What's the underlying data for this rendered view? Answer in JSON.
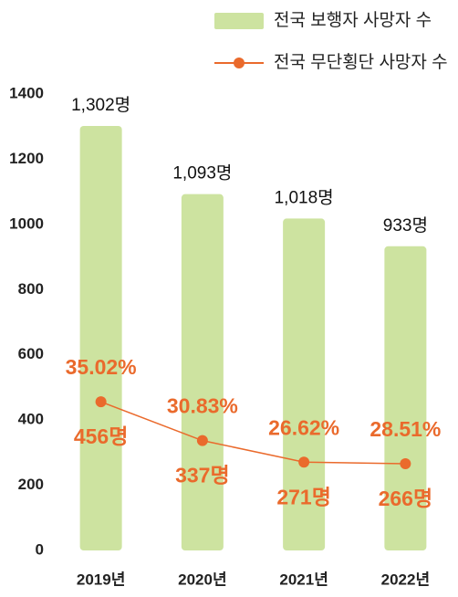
{
  "chart_data": {
    "type": "bar",
    "categories": [
      "2019년",
      "2020년",
      "2021년",
      "2022년"
    ],
    "series": [
      {
        "name": "전국 보행자 사망자 수",
        "type": "bar",
        "color": "#cde3a0",
        "values": [
          1302,
          1093,
          1018,
          933
        ],
        "value_labels": [
          "1,302명",
          "1,093명",
          "1,018명",
          "933명"
        ]
      },
      {
        "name": "전국 무단횡단 사망자 수",
        "type": "line",
        "color": "#ea6a2c",
        "values": [
          456,
          337,
          271,
          266
        ],
        "value_labels": [
          "456명",
          "337명",
          "271명",
          "266명"
        ],
        "shares": [
          35.02,
          30.83,
          26.62,
          28.51
        ],
        "share_labels": [
          "35.02%",
          "30.83%",
          "26.62%",
          "28.51%"
        ]
      }
    ],
    "ylim": [
      0,
      1400
    ],
    "yticks": [
      0,
      200,
      400,
      600,
      800,
      1000,
      1200,
      1400
    ],
    "legend": "top-right"
  }
}
